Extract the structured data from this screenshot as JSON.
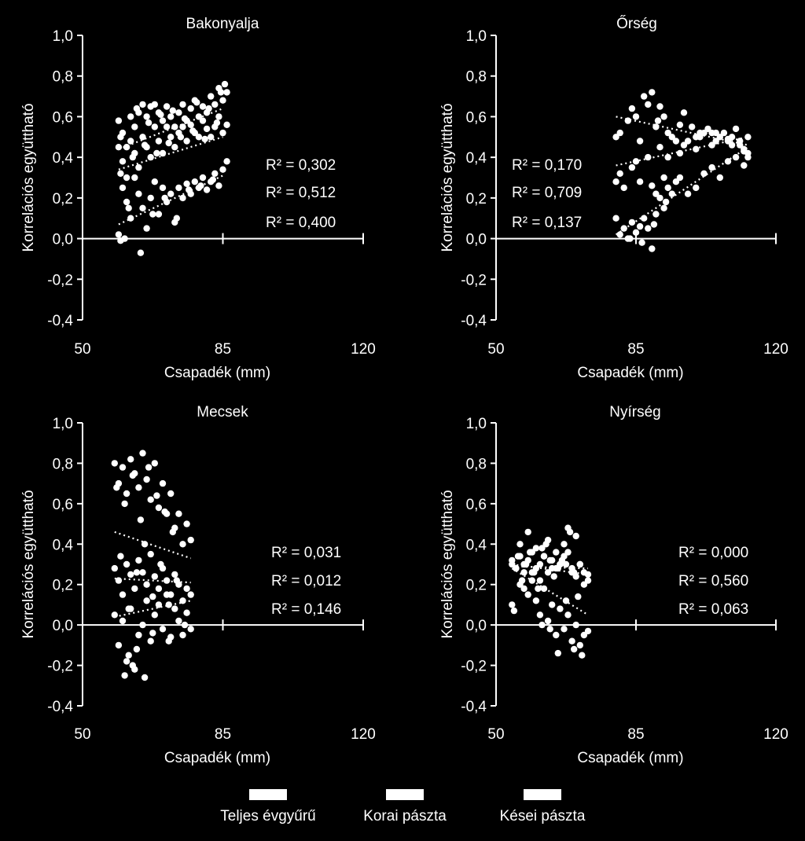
{
  "chart_data": [
    {
      "type": "scatter",
      "title": "Bakonyalja",
      "xlabel": "Csapadék (mm)",
      "ylabel": "Korrelációs együttható",
      "xlim": [
        50,
        120
      ],
      "ylim": [
        -0.4,
        1.0
      ],
      "xticks": [
        "50",
        "85",
        "120"
      ],
      "yticks": [
        "1,0",
        "0,8",
        "0,6",
        "0,4",
        "0,2",
        "0,0",
        "-0,2",
        "-0,4"
      ],
      "r2_labels": [
        "R² = 0,302",
        "R² = 0,512",
        "R² = 0,400"
      ],
      "trendlines": [
        {
          "series": "Teljes évgyűrű",
          "x": [
            59,
            85
          ],
          "y": [
            0.34,
            0.5
          ]
        },
        {
          "series": "Korai pászta",
          "x": [
            59,
            85
          ],
          "y": [
            0.44,
            0.64
          ]
        },
        {
          "series": "Kései pászta",
          "x": [
            59,
            85
          ],
          "y": [
            0.07,
            0.31
          ]
        }
      ],
      "series": [
        {
          "name": "Teljes évgyűrű",
          "x": [
            59,
            60,
            61,
            62,
            63,
            64,
            65,
            66,
            67,
            68,
            69,
            70,
            71,
            72,
            73,
            74,
            75,
            76,
            77,
            78,
            79,
            80,
            81,
            82,
            83,
            84,
            85,
            86,
            59.5,
            62.5,
            65.5,
            68.5,
            71.5,
            74.5,
            77.5,
            80.5,
            83.5
          ],
          "y": [
            0.45,
            0.38,
            0.3,
            0.48,
            0.42,
            0.35,
            0.5,
            0.45,
            0.4,
            0.55,
            0.48,
            0.42,
            0.55,
            0.5,
            0.45,
            0.52,
            0.55,
            0.48,
            0.56,
            0.52,
            0.5,
            0.58,
            0.54,
            0.5,
            0.55,
            0.6,
            0.52,
            0.56,
            0.32,
            0.4,
            0.46,
            0.42,
            0.47,
            0.5,
            0.53,
            0.49,
            0.57
          ]
        },
        {
          "name": "Korai pászta",
          "x": [
            59,
            60,
            61,
            62,
            63,
            64,
            65,
            66,
            67,
            68,
            69,
            70,
            71,
            72,
            73,
            74,
            75,
            76,
            77,
            78,
            79,
            80,
            81,
            82,
            83,
            84,
            85,
            86,
            59.5,
            63.5,
            66.5,
            69.5,
            72.5,
            75.5,
            78.5,
            81.5,
            84.5,
            85.5
          ],
          "y": [
            0.58,
            0.52,
            0.45,
            0.6,
            0.55,
            0.62,
            0.66,
            0.6,
            0.65,
            0.66,
            0.62,
            0.58,
            0.65,
            0.6,
            0.55,
            0.62,
            0.66,
            0.58,
            0.64,
            0.68,
            0.6,
            0.65,
            0.62,
            0.7,
            0.66,
            0.74,
            0.68,
            0.72,
            0.5,
            0.64,
            0.57,
            0.61,
            0.63,
            0.59,
            0.67,
            0.64,
            0.72,
            0.76
          ]
        },
        {
          "name": "Kései pászta",
          "x": [
            59,
            60,
            61,
            62,
            63,
            64,
            65,
            66,
            67,
            68,
            69,
            70,
            71,
            72,
            73,
            74,
            75,
            76,
            77,
            78,
            79,
            80,
            81,
            82,
            83,
            84,
            85,
            86,
            59.5,
            60.5,
            61.5,
            64.5,
            67.5,
            70.5,
            73.5,
            76.5,
            79.5,
            82.5
          ],
          "y": [
            0.02,
            0.25,
            0.18,
            0.1,
            0.3,
            0.22,
            0.15,
            0.05,
            0.2,
            0.28,
            0.12,
            0.25,
            0.18,
            0.22,
            0.08,
            0.25,
            0.2,
            0.27,
            0.22,
            0.28,
            0.25,
            0.3,
            0.24,
            0.28,
            0.32,
            0.26,
            0.34,
            0.38,
            -0.01,
            0.0,
            0.15,
            -0.07,
            0.12,
            0.2,
            0.1,
            0.24,
            0.26,
            0.29
          ]
        }
      ]
    },
    {
      "type": "scatter",
      "title": "Őrség",
      "xlabel": "Csapadék (mm)",
      "ylabel": "Korrelációs együttható",
      "xlim": [
        50,
        120
      ],
      "ylim": [
        -0.4,
        1.0
      ],
      "xticks": [
        "50",
        "85",
        "120"
      ],
      "yticks": [
        "1,0",
        "0,8",
        "0,6",
        "0,4",
        "0,2",
        "0,0",
        "-0,2",
        "-0,4"
      ],
      "r2_labels": [
        "R² = 0,170",
        "R² = 0,709",
        "R² = 0,137"
      ],
      "trendlines": [
        {
          "series": "Teljes évgyűrű",
          "x": [
            80,
            113
          ],
          "y": [
            0.36,
            0.5
          ]
        },
        {
          "series": "Korai pászta",
          "x": [
            80,
            113
          ],
          "y": [
            0.6,
            0.46
          ]
        },
        {
          "series": "Kései pászta",
          "x": [
            80,
            113
          ],
          "y": [
            0.02,
            0.45
          ]
        }
      ],
      "series": [
        {
          "name": "Teljes évgyűrű",
          "x": [
            80,
            82,
            84,
            86,
            88,
            90,
            91,
            92,
            94,
            96,
            98,
            100,
            102,
            104,
            106,
            108,
            110,
            112,
            113,
            81,
            85,
            89,
            93,
            97,
            101,
            105,
            109,
            111
          ],
          "y": [
            0.28,
            0.25,
            0.35,
            0.28,
            0.4,
            0.22,
            0.45,
            0.3,
            0.5,
            0.42,
            0.48,
            0.44,
            0.52,
            0.46,
            0.5,
            0.48,
            0.54,
            0.44,
            0.5,
            0.32,
            0.38,
            0.26,
            0.4,
            0.46,
            0.5,
            0.52,
            0.46,
            0.48
          ]
        },
        {
          "name": "Korai pászta",
          "x": [
            80,
            81,
            83,
            85,
            86,
            88,
            89,
            90,
            91,
            92,
            93,
            95,
            97,
            99,
            101,
            103,
            105,
            107,
            109,
            111,
            113,
            84,
            87,
            90.5,
            96,
            100,
            104,
            108,
            112
          ],
          "y": [
            0.5,
            0.52,
            0.58,
            0.6,
            0.48,
            0.66,
            0.72,
            0.55,
            0.65,
            0.6,
            0.52,
            0.48,
            0.62,
            0.55,
            0.52,
            0.54,
            0.48,
            0.52,
            0.5,
            0.46,
            0.4,
            0.64,
            0.7,
            0.58,
            0.56,
            0.5,
            0.52,
            0.49,
            0.43
          ]
        },
        {
          "name": "Kései pászta",
          "x": [
            80,
            81,
            82,
            83,
            84,
            85,
            86,
            87,
            88,
            89,
            90,
            91,
            92,
            93,
            94,
            95,
            96,
            98,
            100,
            102,
            104,
            106,
            108,
            110,
            112,
            113,
            83.5,
            86.5,
            89.5,
            92.5
          ],
          "y": [
            0.1,
            0.02,
            0.05,
            0.0,
            0.08,
            0.03,
            0.06,
            0.1,
            0.05,
            -0.05,
            0.12,
            0.2,
            0.15,
            0.25,
            0.22,
            0.28,
            0.3,
            0.22,
            0.25,
            0.32,
            0.35,
            0.3,
            0.38,
            0.4,
            0.36,
            0.42,
            0.0,
            -0.02,
            0.07,
            0.18
          ]
        }
      ]
    },
    {
      "type": "scatter",
      "title": "Mecsek",
      "xlabel": "Csapadék (mm)",
      "ylabel": "Korrelációs együttható",
      "xlim": [
        50,
        120
      ],
      "ylim": [
        -0.4,
        1.0
      ],
      "xticks": [
        "50",
        "85",
        "120"
      ],
      "yticks": [
        "1,0",
        "0,8",
        "0,6",
        "0,4",
        "0,2",
        "0,0",
        "-0,2",
        "-0,4"
      ],
      "r2_labels": [
        "R² = 0,031",
        "R² = 0,012",
        "R² = 0,146"
      ],
      "trendlines": [
        {
          "series": "Teljes évgyűrű",
          "x": [
            58,
            77
          ],
          "y": [
            0.23,
            0.21
          ]
        },
        {
          "series": "Korai pászta",
          "x": [
            58,
            77
          ],
          "y": [
            0.46,
            0.33
          ]
        },
        {
          "series": "Kései pászta",
          "x": [
            58,
            77
          ],
          "y": [
            0.04,
            0.12
          ]
        }
      ],
      "series": [
        {
          "name": "Teljes évgyűrű",
          "x": [
            58,
            59,
            60,
            61,
            62,
            63,
            64,
            65,
            66,
            67,
            68,
            69,
            70,
            71,
            72,
            73,
            74,
            75,
            76,
            77,
            59.5,
            61.5,
            63.5,
            65.5,
            67.5,
            69.5,
            71.5,
            73.5
          ],
          "y": [
            0.28,
            0.22,
            0.15,
            0.3,
            0.25,
            0.18,
            0.32,
            0.26,
            0.2,
            0.35,
            0.24,
            0.18,
            0.28,
            0.22,
            0.15,
            0.25,
            0.2,
            0.12,
            0.18,
            0.15,
            0.34,
            0.08,
            0.26,
            0.4,
            0.14,
            0.3,
            0.1,
            0.22
          ]
        },
        {
          "name": "Korai pászta",
          "x": [
            58,
            59,
            60,
            61,
            62,
            63,
            64,
            65,
            66,
            67,
            68,
            69,
            70,
            71,
            72,
            73,
            74,
            75,
            76,
            77,
            58.5,
            60.5,
            62.5,
            64.5,
            66.5,
            68.5,
            70.5,
            72.5
          ],
          "y": [
            0.8,
            0.7,
            0.78,
            0.65,
            0.82,
            0.75,
            0.68,
            0.85,
            0.72,
            0.62,
            0.8,
            0.58,
            0.7,
            0.55,
            0.65,
            0.48,
            0.55,
            0.4,
            0.5,
            0.42,
            0.68,
            0.6,
            0.74,
            0.52,
            0.78,
            0.64,
            0.56,
            0.46
          ]
        },
        {
          "name": "Kései pászta",
          "x": [
            58,
            59,
            60,
            61,
            62,
            63,
            64,
            65,
            66,
            67,
            68,
            69,
            70,
            71,
            72,
            73,
            74,
            75,
            76,
            77,
            60.5,
            61.5,
            62.5,
            63.5,
            65.5,
            67.5,
            71.5,
            75.5
          ],
          "y": [
            0.05,
            -0.1,
            0.02,
            -0.18,
            0.08,
            -0.22,
            -0.05,
            0.0,
            0.12,
            -0.08,
            0.05,
            0.1,
            -0.02,
            0.15,
            -0.06,
            0.08,
            0.02,
            -0.05,
            0.06,
            -0.02,
            -0.25,
            -0.15,
            -0.2,
            -0.12,
            -0.26,
            -0.04,
            -0.08,
            0.0
          ]
        }
      ]
    },
    {
      "type": "scatter",
      "title": "Nyírség",
      "xlabel": "Csapadék (mm)",
      "ylabel": "Korrelációs együttható",
      "xlim": [
        50,
        120
      ],
      "ylim": [
        -0.4,
        1.0
      ],
      "xticks": [
        "50",
        "85",
        "120"
      ],
      "yticks": [
        "1,0",
        "0,8",
        "0,6",
        "0,4",
        "0,2",
        "0,0",
        "-0,2",
        "-0,4"
      ],
      "r2_labels": [
        "R² = 0,000",
        "R² = 0,560",
        "R² = 0,063"
      ],
      "trendlines": [
        {
          "series": "Teljes évgyűrű",
          "x": [
            54,
            73
          ],
          "y": [
            0.29,
            0.28
          ]
        },
        {
          "series": "Korai pászta",
          "x": [
            54,
            73
          ],
          "y": [
            0.3,
            0.25
          ]
        },
        {
          "series": "Kései pászta",
          "x": [
            54,
            73
          ],
          "y": [
            0.28,
            0.05
          ]
        }
      ],
      "series": [
        {
          "name": "Teljes évgyűrű",
          "x": [
            54,
            55,
            56,
            57,
            58,
            59,
            60,
            61,
            62,
            63,
            64,
            65,
            66,
            67,
            68,
            69,
            70,
            71,
            72,
            73,
            55.5,
            57.5,
            59.5,
            61.5,
            63.5,
            65.5,
            67.5,
            69.5
          ],
          "y": [
            0.3,
            0.28,
            0.34,
            0.26,
            0.32,
            0.36,
            0.28,
            0.3,
            0.34,
            0.26,
            0.32,
            0.28,
            0.3,
            0.34,
            0.36,
            0.28,
            0.24,
            0.3,
            0.26,
            0.22,
            0.34,
            0.3,
            0.26,
            0.38,
            0.32,
            0.28,
            0.3,
            0.26
          ]
        },
        {
          "name": "Korai pászta",
          "x": [
            54,
            55,
            56,
            57,
            58,
            59,
            60,
            61,
            62,
            63,
            64,
            65,
            66,
            67,
            68,
            69,
            70,
            71,
            72,
            73,
            54.5,
            56.5,
            58.5,
            60.5,
            62.5,
            64.5,
            66.5,
            68.5,
            70.5
          ],
          "y": [
            0.32,
            0.28,
            0.4,
            0.3,
            0.46,
            0.26,
            0.38,
            0.22,
            0.34,
            0.42,
            0.28,
            0.36,
            0.3,
            0.4,
            0.48,
            0.26,
            0.44,
            0.3,
            0.2,
            0.25,
            0.07,
            0.22,
            0.36,
            0.18,
            0.4,
            0.24,
            0.32,
            0.46,
            0.14
          ]
        },
        {
          "name": "Kései pászta",
          "x": [
            54,
            56,
            58,
            59,
            60,
            61,
            62,
            63,
            64,
            65,
            66,
            67,
            68,
            69,
            70,
            71,
            72,
            73,
            57,
            61.5,
            63.5,
            65.5,
            67.5,
            69.5,
            71.5
          ],
          "y": [
            0.1,
            0.2,
            0.15,
            0.22,
            0.12,
            0.05,
            0.18,
            0.02,
            0.1,
            -0.05,
            0.08,
            -0.02,
            0.05,
            -0.08,
            0.0,
            -0.1,
            -0.05,
            -0.03,
            0.18,
            0.0,
            -0.02,
            -0.14,
            0.12,
            -0.12,
            -0.15
          ]
        }
      ]
    }
  ],
  "legend": {
    "items": [
      {
        "label": "Teljes évgyűrű"
      },
      {
        "label": "Korai pászta"
      },
      {
        "label": "Kései pászta"
      }
    ]
  }
}
